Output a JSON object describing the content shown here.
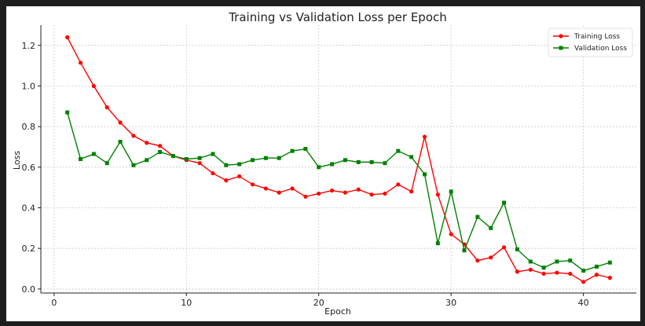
{
  "chart_data": {
    "type": "line",
    "title": "Training vs Validation Loss per Epoch",
    "xlabel": "Epoch",
    "ylabel": "Loss",
    "xlim": [
      -1,
      44
    ],
    "ylim": [
      -0.02,
      1.3
    ],
    "xticks": [
      0,
      10,
      20,
      30,
      40
    ],
    "yticks": [
      0.0,
      0.2,
      0.4,
      0.6,
      0.8,
      1.0,
      1.2
    ],
    "grid": true,
    "legend_position": "top-right",
    "x": [
      1,
      2,
      3,
      4,
      5,
      6,
      7,
      8,
      9,
      10,
      11,
      12,
      13,
      14,
      15,
      16,
      17,
      18,
      19,
      20,
      21,
      22,
      23,
      24,
      25,
      26,
      27,
      28,
      29,
      30,
      31,
      32,
      33,
      34,
      35,
      36,
      37,
      38,
      39,
      40,
      41,
      42
    ],
    "series": [
      {
        "name": "Training Loss",
        "color": "#ff0000",
        "marker": "circle",
        "values": [
          1.24,
          1.115,
          1.0,
          0.895,
          0.82,
          0.755,
          0.72,
          0.705,
          0.655,
          0.635,
          0.62,
          0.57,
          0.535,
          0.555,
          0.515,
          0.495,
          0.475,
          0.495,
          0.455,
          0.47,
          0.485,
          0.475,
          0.49,
          0.465,
          0.47,
          0.515,
          0.48,
          0.75,
          0.465,
          0.27,
          0.22,
          0.14,
          0.155,
          0.205,
          0.085,
          0.095,
          0.075,
          0.08,
          0.075,
          0.035,
          0.07,
          0.055
        ]
      },
      {
        "name": "Validation Loss",
        "color": "#008000",
        "marker": "square",
        "values": [
          0.87,
          0.64,
          0.665,
          0.62,
          0.725,
          0.61,
          0.635,
          0.675,
          0.655,
          0.64,
          0.645,
          0.665,
          0.61,
          0.615,
          0.635,
          0.645,
          0.645,
          0.68,
          0.69,
          0.6,
          0.615,
          0.635,
          0.625,
          0.625,
          0.62,
          0.68,
          0.65,
          0.565,
          0.225,
          0.48,
          0.19,
          0.355,
          0.3,
          0.425,
          0.195,
          0.135,
          0.105,
          0.135,
          0.14,
          0.09,
          0.11,
          0.13
        ]
      }
    ]
  }
}
